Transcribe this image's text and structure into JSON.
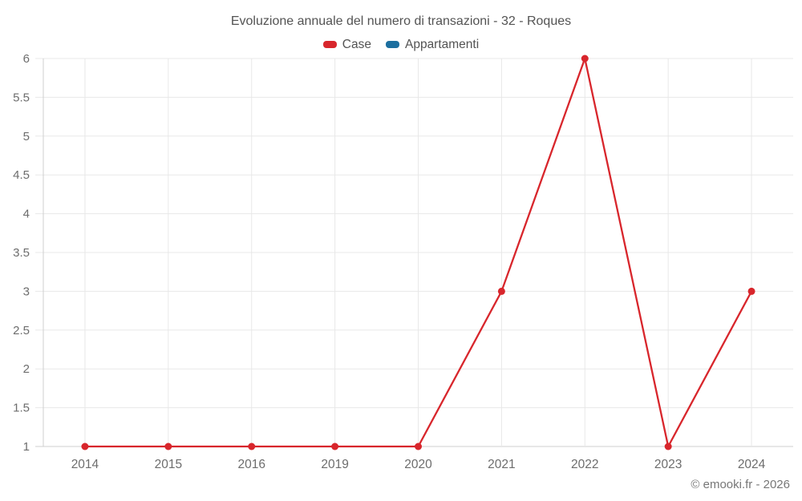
{
  "title": "Evoluzione annuale del numero di transazioni - 32 - Roques",
  "footer": "© emooki.fr - 2026",
  "legend": {
    "items": [
      {
        "label": "Case",
        "color": "#d8262c"
      },
      {
        "label": "Appartamenti",
        "color": "#1c6f9f"
      }
    ]
  },
  "chart_data": {
    "type": "line",
    "title": "Evoluzione annuale del numero di transazioni - 32 - Roques",
    "categories": [
      "2014",
      "2015",
      "2016",
      "2019",
      "2020",
      "2021",
      "2022",
      "2023",
      "2024"
    ],
    "series": [
      {
        "name": "Case",
        "color": "#d8262c",
        "values": [
          1,
          1,
          1,
          1,
          1,
          3,
          6,
          1,
          3
        ]
      },
      {
        "name": "Appartamenti",
        "color": "#1c6f9f",
        "values": []
      }
    ],
    "xlabel": "",
    "ylabel": "",
    "ylim": [
      1,
      6
    ],
    "ytick_step": 0.5,
    "grid": true,
    "legend_position": "top",
    "markers": true
  },
  "colors": {
    "title_text": "#535353",
    "axis_label_text": "#6d6d6d",
    "footer_text": "#777777",
    "gridline": "#e8e8e8",
    "axis_line": "#cfcfcf",
    "background": "#ffffff"
  }
}
